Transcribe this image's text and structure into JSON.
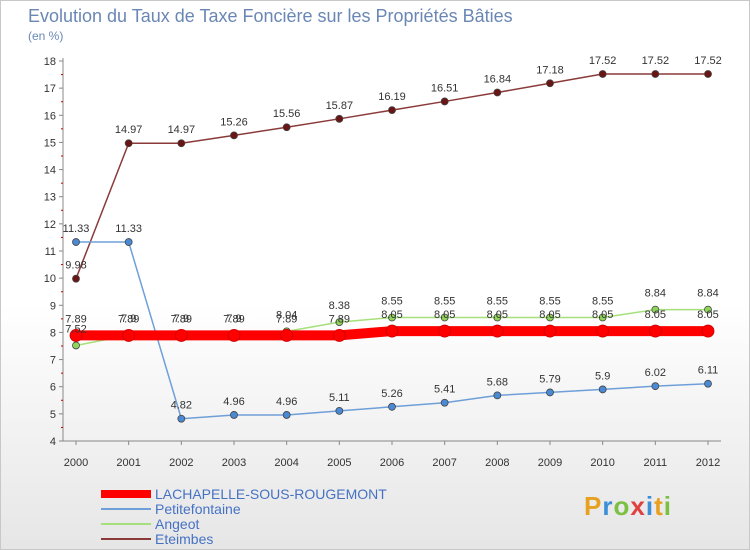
{
  "header": {
    "title": "Evolution du Taux de Taxe Foncière sur les Propriétés Bâties",
    "unit": "(en %)"
  },
  "logo": {
    "text": "Proxiti",
    "letters": [
      "P",
      "r",
      "o",
      "x",
      "i",
      "t",
      "i"
    ],
    "colors": [
      "#e8a020",
      "#3b8fd8",
      "#7bc043",
      "#e04040",
      "#3b8fd8",
      "#e8a020",
      "#7bc043"
    ]
  },
  "chart_data": {
    "type": "line",
    "title": "Evolution du Taux de Taxe Foncière sur les Propriétés Bâties",
    "ylabel": "(en %)",
    "xlabel": "",
    "x": [
      "2000",
      "2001",
      "2002",
      "2003",
      "2004",
      "2005",
      "2006",
      "2007",
      "2008",
      "2009",
      "2010",
      "2011",
      "2012"
    ],
    "ylim": [
      4,
      18
    ],
    "yticks": [
      "4",
      "5",
      "6",
      "7",
      "8",
      "9",
      "10",
      "11",
      "12",
      "13",
      "14",
      "15",
      "16",
      "17",
      "18"
    ],
    "grid": false,
    "legend_position": "bottom-left",
    "series": [
      {
        "name": "LACHAPELLE-SOUS-ROUGEMONT",
        "color": "#ff0000",
        "marker_fill": "#ff0000",
        "values": [
          7.89,
          7.89,
          7.89,
          7.89,
          7.89,
          7.89,
          8.05,
          8.05,
          8.05,
          8.05,
          8.05,
          8.05,
          8.05
        ],
        "labels": [
          "7.89",
          "7.89",
          "7.89",
          "7.89",
          "7.89",
          "7.89",
          "8.05",
          "8.05",
          "8.05",
          "8.05",
          "8.05",
          "8.05",
          "8.05"
        ]
      },
      {
        "name": "Petitefontaine",
        "color": "#6f9fd8",
        "marker_fill": "#4a8ad4",
        "values": [
          11.33,
          11.33,
          4.82,
          4.96,
          4.96,
          5.11,
          5.26,
          5.41,
          5.68,
          5.79,
          5.9,
          6.02,
          6.11
        ],
        "labels": [
          "11.33",
          "11.33",
          "4.82",
          "4.96",
          "4.96",
          "5.11",
          "5.26",
          "5.41",
          "5.68",
          "5.79",
          "5.9",
          "6.02",
          "6.11"
        ]
      },
      {
        "name": "Angeot",
        "color": "#a6e07a",
        "marker_fill": "#8fd45a",
        "values": [
          7.52,
          7.9,
          7.9,
          7.9,
          8.04,
          8.38,
          8.55,
          8.55,
          8.55,
          8.55,
          8.55,
          8.84,
          8.84
        ],
        "labels": [
          "7.52",
          "7.9",
          "7.9",
          "7.9",
          "8.04",
          "8.38",
          "8.55",
          "8.55",
          "8.55",
          "8.55",
          "8.55",
          "8.84",
          "8.84"
        ]
      },
      {
        "name": "Eteimbes",
        "color": "#8b3a3a",
        "marker_fill": "#6b1414",
        "values": [
          9.98,
          14.97,
          14.97,
          15.26,
          15.56,
          15.87,
          16.19,
          16.51,
          16.84,
          17.18,
          17.52,
          17.52,
          17.52
        ],
        "labels": [
          "9.98",
          "14.97",
          "14.97",
          "15.26",
          "15.56",
          "15.87",
          "16.19",
          "16.51",
          "16.84",
          "17.18",
          "17.52",
          "17.52",
          "17.52"
        ]
      }
    ]
  }
}
